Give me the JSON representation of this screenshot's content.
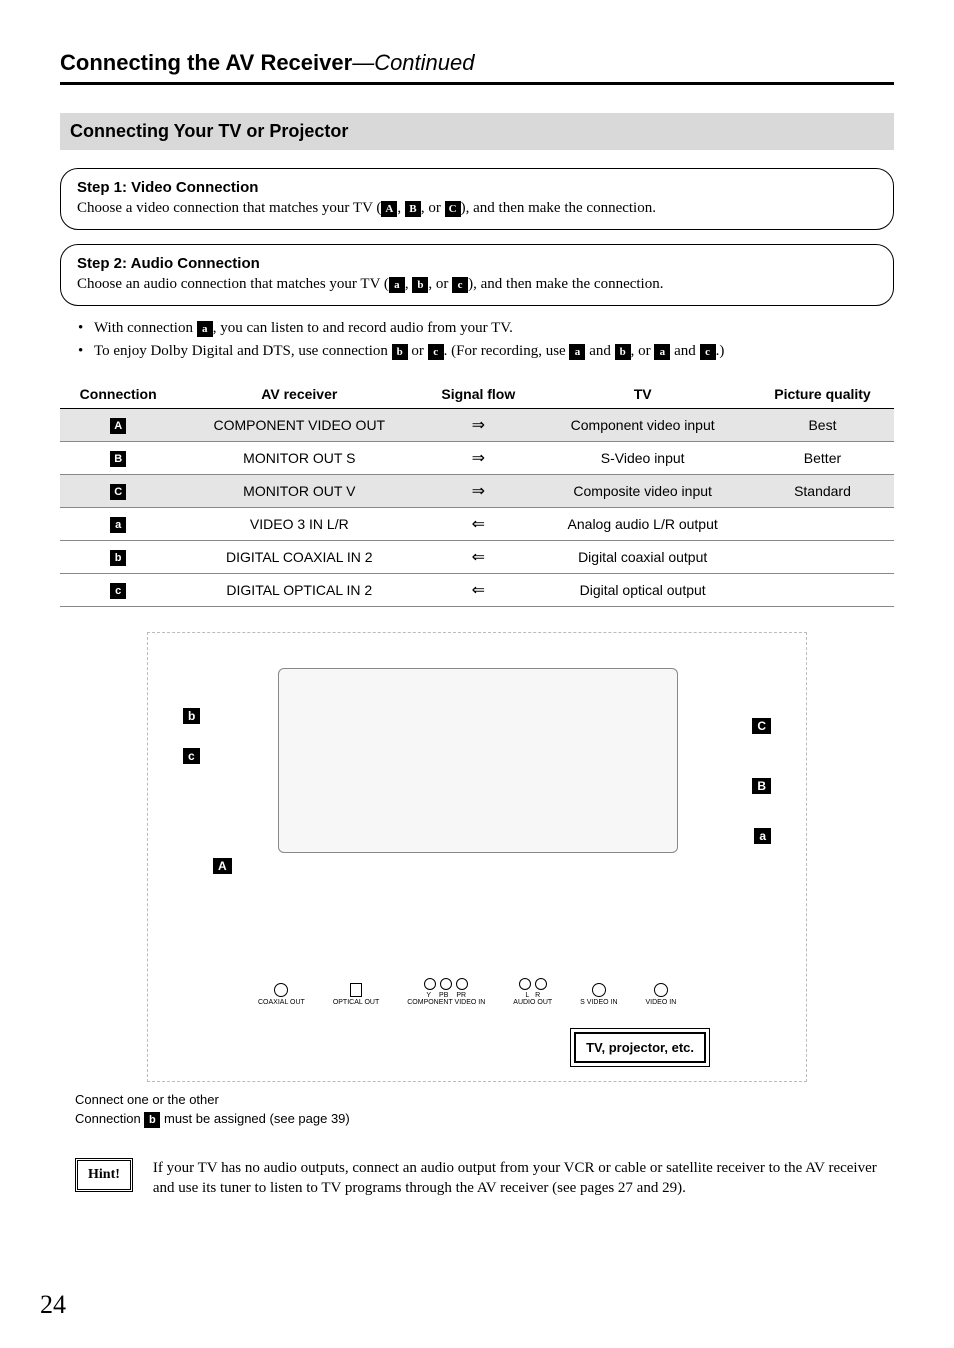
{
  "page_number": "24",
  "header": {
    "title_main": "Connecting the AV Receiver",
    "title_cont": "—Continued"
  },
  "section_title": "Connecting Your TV or Projector",
  "steps": [
    {
      "title": "Step 1: Video Connection",
      "body_pre": "Choose a video connection that matches your TV (",
      "chips": [
        "A",
        "B",
        "C"
      ],
      "body_post": "), and then make the connection."
    },
    {
      "title": "Step 2: Audio Connection",
      "body_pre": "Choose an audio connection that matches your TV (",
      "chips": [
        "a",
        "b",
        "c"
      ],
      "body_post": "), and then make the connection."
    }
  ],
  "bullets": {
    "b1_pre": "With connection ",
    "b1_chip": "a",
    "b1_post": ", you can listen to and record audio from your TV.",
    "b2_pre": "To enjoy Dolby Digital and DTS, use connection ",
    "b2_c1": "b",
    "b2_mid1": " or ",
    "b2_c2": "c",
    "b2_mid2": ". (For recording, use ",
    "b2_c3": "a",
    "b2_mid3": " and ",
    "b2_c4": "b",
    "b2_mid4": ", or ",
    "b2_c5": "a",
    "b2_mid5": " and ",
    "b2_c6": "c",
    "b2_post": ".)"
  },
  "table": {
    "headers": [
      "Connection",
      "AV receiver",
      "Signal flow",
      "TV",
      "Picture quality"
    ],
    "rows": [
      {
        "chip": "A",
        "recv": "COMPONENT VIDEO OUT",
        "flow": "⇒",
        "tv": "Component video input",
        "pq": "Best",
        "shade": true
      },
      {
        "chip": "B",
        "recv": "MONITOR OUT S",
        "flow": "⇒",
        "tv": "S-Video input",
        "pq": "Better",
        "shade": false
      },
      {
        "chip": "C",
        "recv": "MONITOR OUT V",
        "flow": "⇒",
        "tv": "Composite video input",
        "pq": "Standard",
        "shade": true
      },
      {
        "chip": "a",
        "recv": "VIDEO 3 IN L/R",
        "flow": "⇐",
        "tv": "Analog audio L/R output",
        "pq": "",
        "shade": false
      },
      {
        "chip": "b",
        "recv": "DIGITAL COAXIAL IN 2",
        "flow": "⇐",
        "tv": "Digital coaxial output",
        "pq": "",
        "shade": false
      },
      {
        "chip": "c",
        "recv": "DIGITAL OPTICAL IN 2",
        "flow": "⇐",
        "tv": "Digital optical output",
        "pq": "",
        "shade": false
      }
    ]
  },
  "diagram": {
    "callouts": {
      "b": "b",
      "c": "c",
      "A": "A",
      "C": "C",
      "B": "B",
      "a": "a"
    },
    "ports": {
      "coax": "COAXIAL OUT",
      "opt": "OPTICAL OUT",
      "comp": "COMPONENT VIDEO IN",
      "y": "Y",
      "pb": "PB",
      "pr": "PR",
      "audio": "AUDIO OUT",
      "l": "L",
      "r": "R",
      "svid": "S VIDEO IN",
      "vid": "VIDEO IN"
    },
    "tv_box": "TV, projector, etc.",
    "note1": "Connect one or the other",
    "note2_pre": "Connection ",
    "note2_chip": "b",
    "note2_post": " must be assigned (see page 39)"
  },
  "hint": {
    "label": "Hint!",
    "text": "If your TV has no audio outputs, connect an audio output from your VCR or cable or satellite receiver to the AV receiver and use its tuner to listen to TV programs through the AV receiver (see pages 27 and 29)."
  },
  "colors": {
    "section_bg": "#d9d9d9",
    "shade_bg": "#e5e5e5",
    "chip_bg": "#000000",
    "chip_fg": "#ffffff"
  }
}
